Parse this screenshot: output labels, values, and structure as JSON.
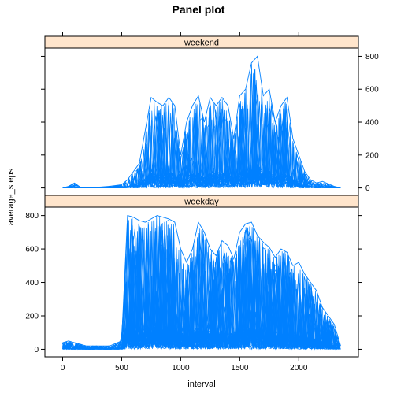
{
  "chart_data": {
    "type": "line",
    "layout": "trellis",
    "title": "Panel plot",
    "xlabel": "interval",
    "ylabel": "average_steps",
    "xlim": [
      -150,
      2505
    ],
    "ylim": [
      -45,
      850
    ],
    "x_ticks": [
      0,
      500,
      1000,
      1500,
      2000
    ],
    "y_ticks": [
      0,
      200,
      400,
      600,
      800
    ],
    "x_tick_labels": [
      "0",
      "500",
      "1000",
      "1500",
      "2000"
    ],
    "y_tick_labels": [
      "0",
      "200",
      "400",
      "600",
      "800"
    ],
    "line_color": "#0080ff",
    "strip_color": "#ffe5cc",
    "y_axis_sides": {
      "weekend": "right",
      "weekday": "left"
    },
    "panels": [
      {
        "name": "weekend",
        "x": [
          0,
          50,
          100,
          150,
          200,
          300,
          400,
          500,
          550,
          600,
          650,
          700,
          750,
          800,
          850,
          900,
          950,
          1000,
          1050,
          1100,
          1150,
          1200,
          1250,
          1300,
          1350,
          1400,
          1450,
          1500,
          1550,
          1600,
          1650,
          1700,
          1750,
          1800,
          1850,
          1900,
          1950,
          2000,
          2050,
          2100,
          2150,
          2200,
          2300,
          2355
        ],
        "values": [
          0,
          10,
          30,
          5,
          0,
          5,
          10,
          20,
          50,
          100,
          150,
          350,
          550,
          520,
          500,
          550,
          500,
          200,
          400,
          500,
          560,
          400,
          550,
          500,
          550,
          500,
          300,
          560,
          600,
          760,
          800,
          560,
          600,
          400,
          500,
          550,
          300,
          200,
          100,
          50,
          30,
          40,
          10,
          0
        ],
        "peak_max": 800
      },
      {
        "name": "weekday",
        "x": [
          0,
          50,
          100,
          150,
          200,
          300,
          400,
          500,
          550,
          600,
          650,
          700,
          750,
          800,
          850,
          900,
          950,
          1000,
          1050,
          1100,
          1150,
          1200,
          1250,
          1300,
          1350,
          1400,
          1450,
          1500,
          1550,
          1600,
          1650,
          1700,
          1750,
          1800,
          1850,
          1900,
          1950,
          2000,
          2050,
          2100,
          2150,
          2200,
          2300,
          2355
        ],
        "values": [
          40,
          50,
          40,
          30,
          20,
          20,
          20,
          50,
          800,
          790,
          770,
          760,
          780,
          800,
          790,
          780,
          760,
          600,
          520,
          600,
          760,
          700,
          600,
          560,
          650,
          620,
          540,
          700,
          750,
          760,
          680,
          640,
          610,
          550,
          600,
          580,
          500,
          520,
          450,
          400,
          350,
          250,
          150,
          20
        ],
        "peak_max": 800
      }
    ]
  }
}
